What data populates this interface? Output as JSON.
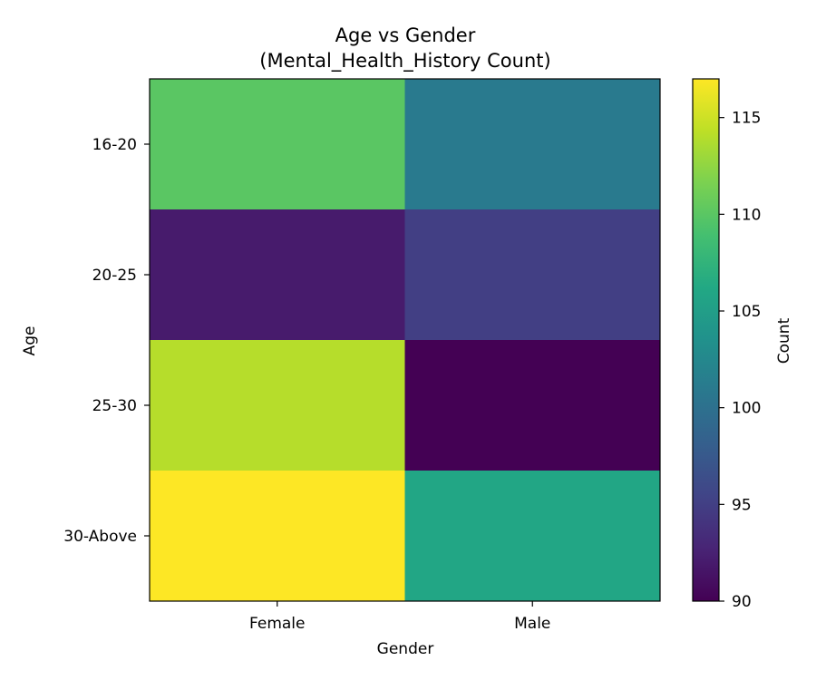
{
  "chart_data": {
    "type": "heatmap",
    "title_line1": "Age vs Gender",
    "title_line2": "(Mental_Health_History Count)",
    "xlabel": "Gender",
    "ylabel": "Age",
    "x_categories": [
      "Female",
      "Male"
    ],
    "y_categories": [
      "16-20",
      "20-25",
      "25-30",
      "30-Above"
    ],
    "values": [
      [
        110,
        101
      ],
      [
        92,
        95
      ],
      [
        114,
        90
      ],
      [
        117,
        106
      ]
    ],
    "colormap": "viridis",
    "colorbar": {
      "label": "Count",
      "range": [
        90,
        117
      ],
      "ticks": [
        "90",
        "95",
        "100",
        "105",
        "110",
        "115"
      ]
    }
  }
}
